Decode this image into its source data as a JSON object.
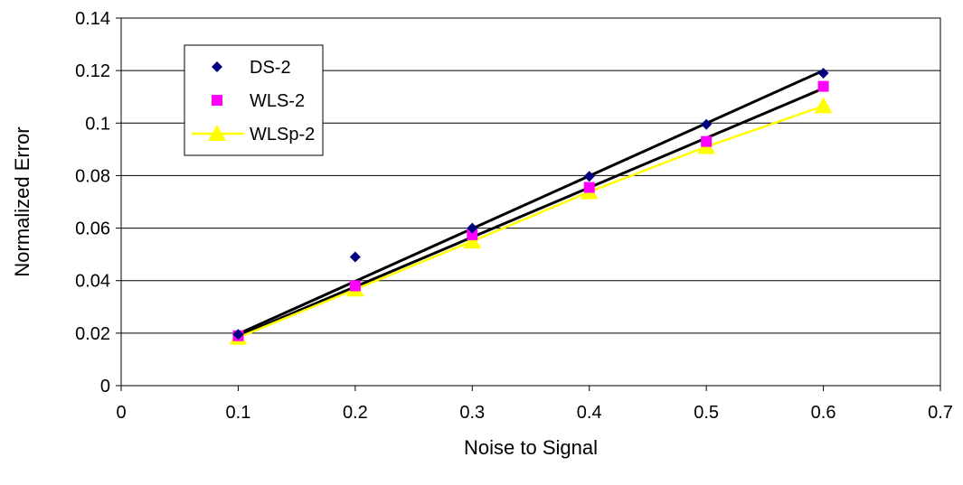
{
  "chart_data": {
    "type": "scatter",
    "xlabel": "Noise to Signal",
    "ylabel": "Normalized Error",
    "xlim": [
      0,
      0.7
    ],
    "ylim": [
      0,
      0.14
    ],
    "x_ticks": [
      "0",
      "0.1",
      "0.2",
      "0.3",
      "0.4",
      "0.5",
      "0.6",
      "0.7"
    ],
    "y_ticks": [
      "0",
      "0.02",
      "0.04",
      "0.06",
      "0.08",
      "0.1",
      "0.12",
      "0.14"
    ],
    "grid": "horizontal",
    "legend_position": "top-left",
    "series": [
      {
        "name": "DS-2",
        "marker": "diamond",
        "color": "#000080",
        "x": [
          0.1,
          0.2,
          0.3,
          0.4,
          0.5,
          0.6
        ],
        "y": [
          0.0195,
          0.049,
          0.06,
          0.0797,
          0.0995,
          0.119
        ]
      },
      {
        "name": "WLS-2",
        "marker": "square",
        "color": "#ff00ff",
        "x": [
          0.1,
          0.2,
          0.3,
          0.4,
          0.5,
          0.6
        ],
        "y": [
          0.019,
          0.038,
          0.0575,
          0.0755,
          0.093,
          0.114
        ]
      },
      {
        "name": "WLSp-2",
        "marker": "triangle",
        "color": "#ffff00",
        "line": true,
        "x": [
          0.1,
          0.2,
          0.3,
          0.4,
          0.5,
          0.6
        ],
        "y": [
          0.0183,
          0.0367,
          0.055,
          0.0738,
          0.091,
          0.1065
        ]
      }
    ],
    "trendlines": [
      {
        "color": "#000000",
        "x": [
          0.1,
          0.6
        ],
        "y": [
          0.0197,
          0.12
        ]
      },
      {
        "color": "#000000",
        "x": [
          0.1,
          0.6
        ],
        "y": [
          0.0188,
          0.1132
        ]
      }
    ]
  }
}
